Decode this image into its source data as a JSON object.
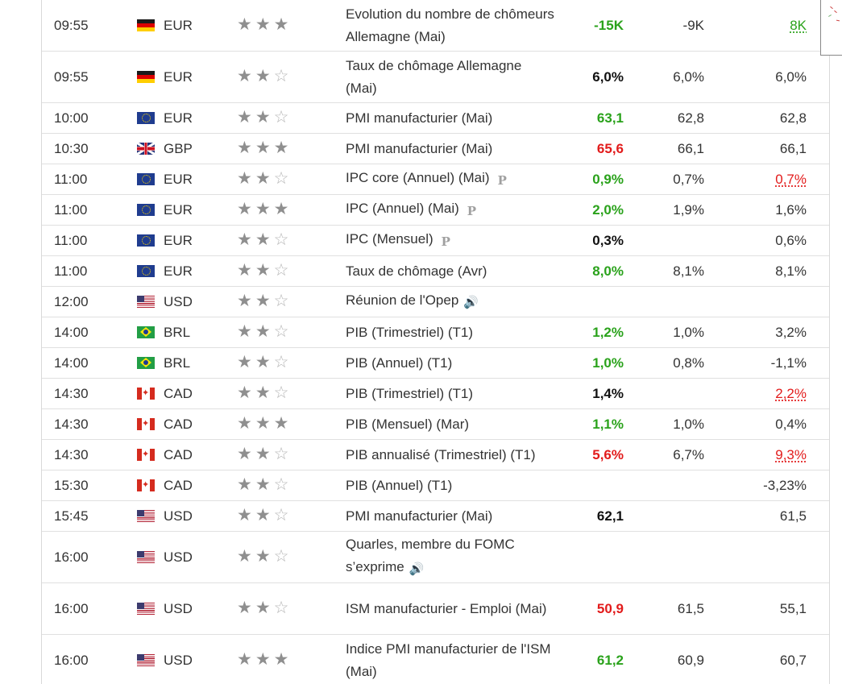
{
  "rows": [
    {
      "time": "09:55",
      "flag": "germany-flag",
      "currency": "EUR",
      "stars": 3,
      "event": "Evolution du nombre de chômeurs Allemagne (Mai)",
      "icon": "",
      "actual": "-15K",
      "actual_color": "green",
      "forecast": "-9K",
      "previous": "8K",
      "previous_color": "green",
      "tall": true
    },
    {
      "time": "09:55",
      "flag": "germany-flag",
      "currency": "EUR",
      "stars": 2,
      "event": "Taux de chômage Allemagne (Mai)",
      "icon": "",
      "actual": "6,0%",
      "actual_color": "black",
      "forecast": "6,0%",
      "previous": "6,0%",
      "previous_color": "normal",
      "tall": true
    },
    {
      "time": "10:00",
      "flag": "eu-flag",
      "currency": "EUR",
      "stars": 2,
      "event": "PMI manufacturier (Mai)",
      "icon": "",
      "actual": "63,1",
      "actual_color": "green",
      "forecast": "62,8",
      "previous": "62,8",
      "previous_color": "normal",
      "tall": false
    },
    {
      "time": "10:30",
      "flag": "uk-flag",
      "currency": "GBP",
      "stars": 3,
      "event": "PMI manufacturier (Mai)",
      "icon": "",
      "actual": "65,6",
      "actual_color": "red",
      "forecast": "66,1",
      "previous": "66,1",
      "previous_color": "normal",
      "tall": false
    },
    {
      "time": "11:00",
      "flag": "eu-flag",
      "currency": "EUR",
      "stars": 2,
      "event": "IPC core (Annuel) (Mai)",
      "icon": "preliminary",
      "actual": "0,9%",
      "actual_color": "green",
      "forecast": "0,7%",
      "previous": "0,7%",
      "previous_color": "red",
      "tall": false
    },
    {
      "time": "11:00",
      "flag": "eu-flag",
      "currency": "EUR",
      "stars": 3,
      "event": "IPC (Annuel) (Mai)",
      "icon": "preliminary",
      "actual": "2,0%",
      "actual_color": "green",
      "forecast": "1,9%",
      "previous": "1,6%",
      "previous_color": "normal",
      "tall": false
    },
    {
      "time": "11:00",
      "flag": "eu-flag",
      "currency": "EUR",
      "stars": 2,
      "event": "IPC (Mensuel)",
      "icon": "preliminary",
      "actual": "0,3%",
      "actual_color": "black",
      "forecast": "",
      "previous": "0,6%",
      "previous_color": "normal",
      "tall": false
    },
    {
      "time": "11:00",
      "flag": "eu-flag",
      "currency": "EUR",
      "stars": 2,
      "event": "Taux de chômage (Avr)",
      "icon": "",
      "actual": "8,0%",
      "actual_color": "green",
      "forecast": "8,1%",
      "previous": "8,1%",
      "previous_color": "normal",
      "tall": false
    },
    {
      "time": "12:00",
      "flag": "us-flag",
      "currency": "USD",
      "stars": 2,
      "event": "Réunion de l'Opep",
      "icon": "speech",
      "actual": "",
      "actual_color": "black",
      "forecast": "",
      "previous": "",
      "previous_color": "normal",
      "tall": false
    },
    {
      "time": "14:00",
      "flag": "brazil-flag",
      "currency": "BRL",
      "stars": 2,
      "event": "PIB (Trimestriel) (T1)",
      "icon": "",
      "actual": "1,2%",
      "actual_color": "green",
      "forecast": "1,0%",
      "previous": "3,2%",
      "previous_color": "normal",
      "tall": false
    },
    {
      "time": "14:00",
      "flag": "brazil-flag",
      "currency": "BRL",
      "stars": 2,
      "event": "PIB (Annuel) (T1)",
      "icon": "",
      "actual": "1,0%",
      "actual_color": "green",
      "forecast": "0,8%",
      "previous": "-1,1%",
      "previous_color": "normal",
      "tall": false
    },
    {
      "time": "14:30",
      "flag": "canada-flag",
      "currency": "CAD",
      "stars": 2,
      "event": "PIB (Trimestriel) (T1)",
      "icon": "",
      "actual": "1,4%",
      "actual_color": "black",
      "forecast": "",
      "previous": "2,2%",
      "previous_color": "red",
      "tall": false
    },
    {
      "time": "14:30",
      "flag": "canada-flag",
      "currency": "CAD",
      "stars": 3,
      "event": "PIB (Mensuel) (Mar)",
      "icon": "",
      "actual": "1,1%",
      "actual_color": "green",
      "forecast": "1,0%",
      "previous": "0,4%",
      "previous_color": "normal",
      "tall": false
    },
    {
      "time": "14:30",
      "flag": "canada-flag",
      "currency": "CAD",
      "stars": 2,
      "event": "PIB annualisé (Trimestriel) (T1)",
      "icon": "",
      "actual": "5,6%",
      "actual_color": "red",
      "forecast": "6,7%",
      "previous": "9,3%",
      "previous_color": "red",
      "tall": false
    },
    {
      "time": "15:30",
      "flag": "canada-flag",
      "currency": "CAD",
      "stars": 2,
      "event": "PIB (Annuel) (T1)",
      "icon": "",
      "actual": "",
      "actual_color": "black",
      "forecast": "",
      "previous": "-3,23%",
      "previous_color": "normal",
      "tall": false
    },
    {
      "time": "15:45",
      "flag": "us-flag",
      "currency": "USD",
      "stars": 2,
      "event": "PMI manufacturier (Mai)",
      "icon": "",
      "actual": "62,1",
      "actual_color": "black",
      "forecast": "",
      "previous": "61,5",
      "previous_color": "normal",
      "tall": false
    },
    {
      "time": "16:00",
      "flag": "us-flag",
      "currency": "USD",
      "stars": 2,
      "event": "Quarles, membre du FOMC s’exprime",
      "icon": "speech",
      "actual": "",
      "actual_color": "black",
      "forecast": "",
      "previous": "",
      "previous_color": "normal",
      "tall": true
    },
    {
      "time": "16:00",
      "flag": "us-flag",
      "currency": "USD",
      "stars": 2,
      "event": "ISM manufacturier - Emploi (Mai)",
      "icon": "",
      "actual": "50,9",
      "actual_color": "red",
      "forecast": "61,5",
      "previous": "55,1",
      "previous_color": "normal",
      "tall": true
    },
    {
      "time": "16:00",
      "flag": "us-flag",
      "currency": "USD",
      "stars": 3,
      "event": "Indice PMI manufacturier de l'ISM (Mai)",
      "icon": "",
      "actual": "61,2",
      "actual_color": "green",
      "forecast": "60,9",
      "previous": "60,7",
      "previous_color": "normal",
      "tall": true
    }
  ],
  "icons": {
    "preliminary": "P",
    "speech": "🔊"
  }
}
